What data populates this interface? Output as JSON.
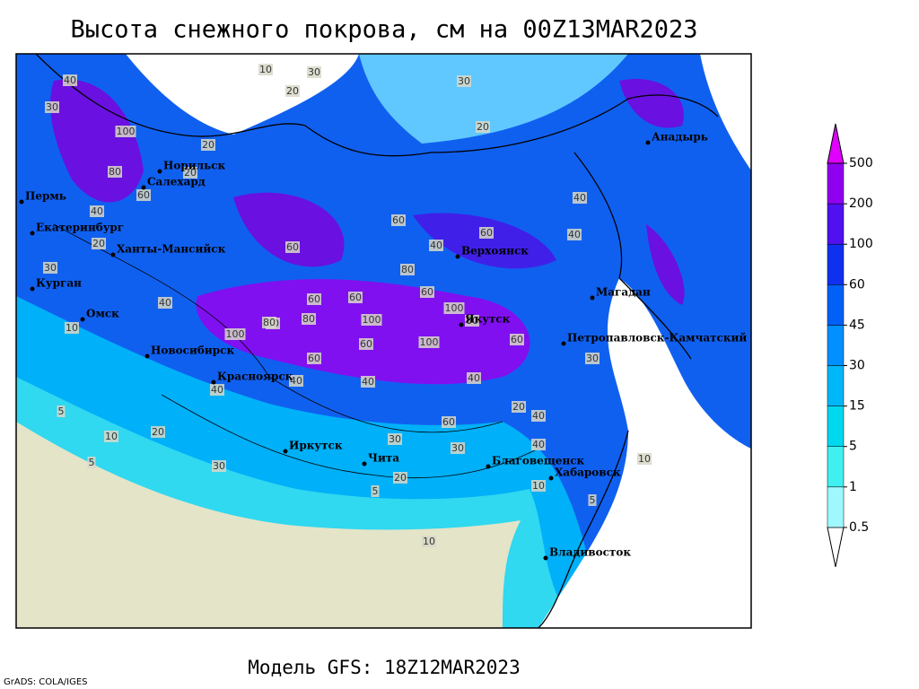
{
  "title": "Высота снежного покрова, см на 00Z13MAR2023",
  "footer": "Модель GFS: 18Z12MAR2023",
  "credit": "GrADS: COLA/IGES",
  "colorbar": {
    "levels": [
      0.5,
      1,
      5,
      15,
      30,
      45,
      60,
      100,
      200,
      500
    ],
    "colors": [
      "#ffffff",
      "#a0f8ff",
      "#40f0f0",
      "#00d8f0",
      "#00b8f8",
      "#0090ff",
      "#0060f8",
      "#1030f0",
      "#5010f0",
      "#9000f0",
      "#e000ff"
    ]
  },
  "cities": [
    "Норильск",
    "Салехард",
    "Пермь",
    "Екатеринбург",
    "Ханты-Мансийск",
    "Курган",
    "Омск",
    "Новосибирск",
    "Красноярск",
    "Иркутск",
    "Чита",
    "Верхоянск",
    "Якутск",
    "Магадан",
    "Анадырь",
    "Петропавловск-Камчатский",
    "Благовещенск",
    "Хабаровск",
    "Владивосток"
  ],
  "contour_labels": [
    10,
    30,
    20,
    30,
    40,
    30,
    100,
    80,
    60,
    40,
    20,
    20,
    60,
    40,
    80,
    60,
    100,
    60,
    80,
    100,
    60,
    60,
    40,
    100,
    60,
    80,
    100,
    60,
    40,
    60,
    40,
    40,
    30,
    20,
    10,
    5,
    5,
    10,
    20,
    30,
    40,
    60,
    80,
    40,
    30,
    20,
    10,
    5,
    40,
    60,
    80,
    40,
    30,
    20,
    10,
    5,
    30,
    20,
    40,
    10
  ]
}
